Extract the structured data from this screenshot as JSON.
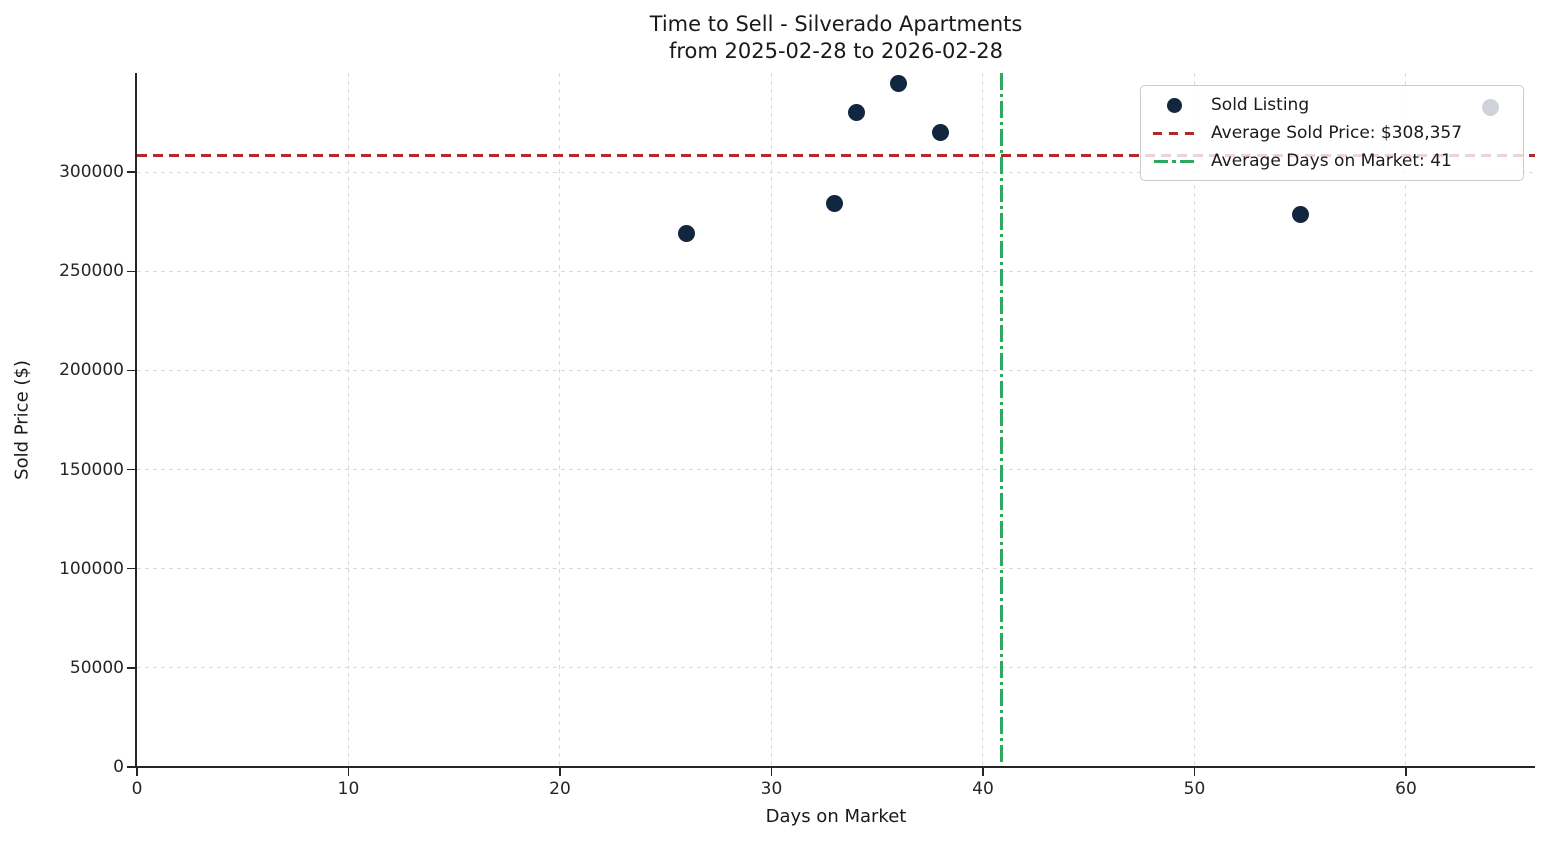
{
  "chart_data": {
    "type": "scatter",
    "title_line1": "Time to Sell - Silverado Apartments",
    "title_line2": "from 2025-02-28 to 2026-02-28",
    "xlabel": "Days on Market",
    "ylabel": "Sold Price ($)",
    "xlim": [
      0,
      66.1
    ],
    "ylim": [
      0,
      350000
    ],
    "x_ticks": [
      0,
      10,
      20,
      30,
      40,
      50,
      60
    ],
    "y_ticks": [
      0,
      50000,
      100000,
      150000,
      200000,
      250000,
      300000
    ],
    "grid": true,
    "series": [
      {
        "name": "Sold Listing",
        "type": "scatter",
        "color": "#122640",
        "points": [
          {
            "days_on_market": 26,
            "sold_price": 269000
          },
          {
            "days_on_market": 33,
            "sold_price": 284000
          },
          {
            "days_on_market": 34,
            "sold_price": 330000
          },
          {
            "days_on_market": 36,
            "sold_price": 344500
          },
          {
            "days_on_market": 38,
            "sold_price": 320000
          },
          {
            "days_on_market": 55,
            "sold_price": 278500
          },
          {
            "days_on_market": 64,
            "sold_price": 332500
          }
        ]
      }
    ],
    "reference_lines": [
      {
        "axis": "y",
        "value": 308357,
        "style": "dashed",
        "color": "#b22a25",
        "label": "Average Sold Price: $308,357"
      },
      {
        "axis": "x",
        "value": 40.86,
        "style": "dashdot",
        "color": "#2ca95f",
        "label": "Average Days on Market: 41"
      }
    ],
    "legend": {
      "position": "upper-right",
      "items": [
        {
          "label": "Sold Listing",
          "marker": "dot",
          "color": "#122640"
        },
        {
          "label": "Average Sold Price: $308,357",
          "marker": "dashed-line",
          "color": "#b22a25"
        },
        {
          "label": "Average Days on Market: 41",
          "marker": "dashdot-line",
          "color": "#2ca95f"
        }
      ]
    },
    "colors": {
      "point": "#122640",
      "avg_price_line": "#b22a25",
      "avg_days_line": "#2ca95f",
      "gridline": "#d9d9d9",
      "spine": "#262626"
    }
  }
}
